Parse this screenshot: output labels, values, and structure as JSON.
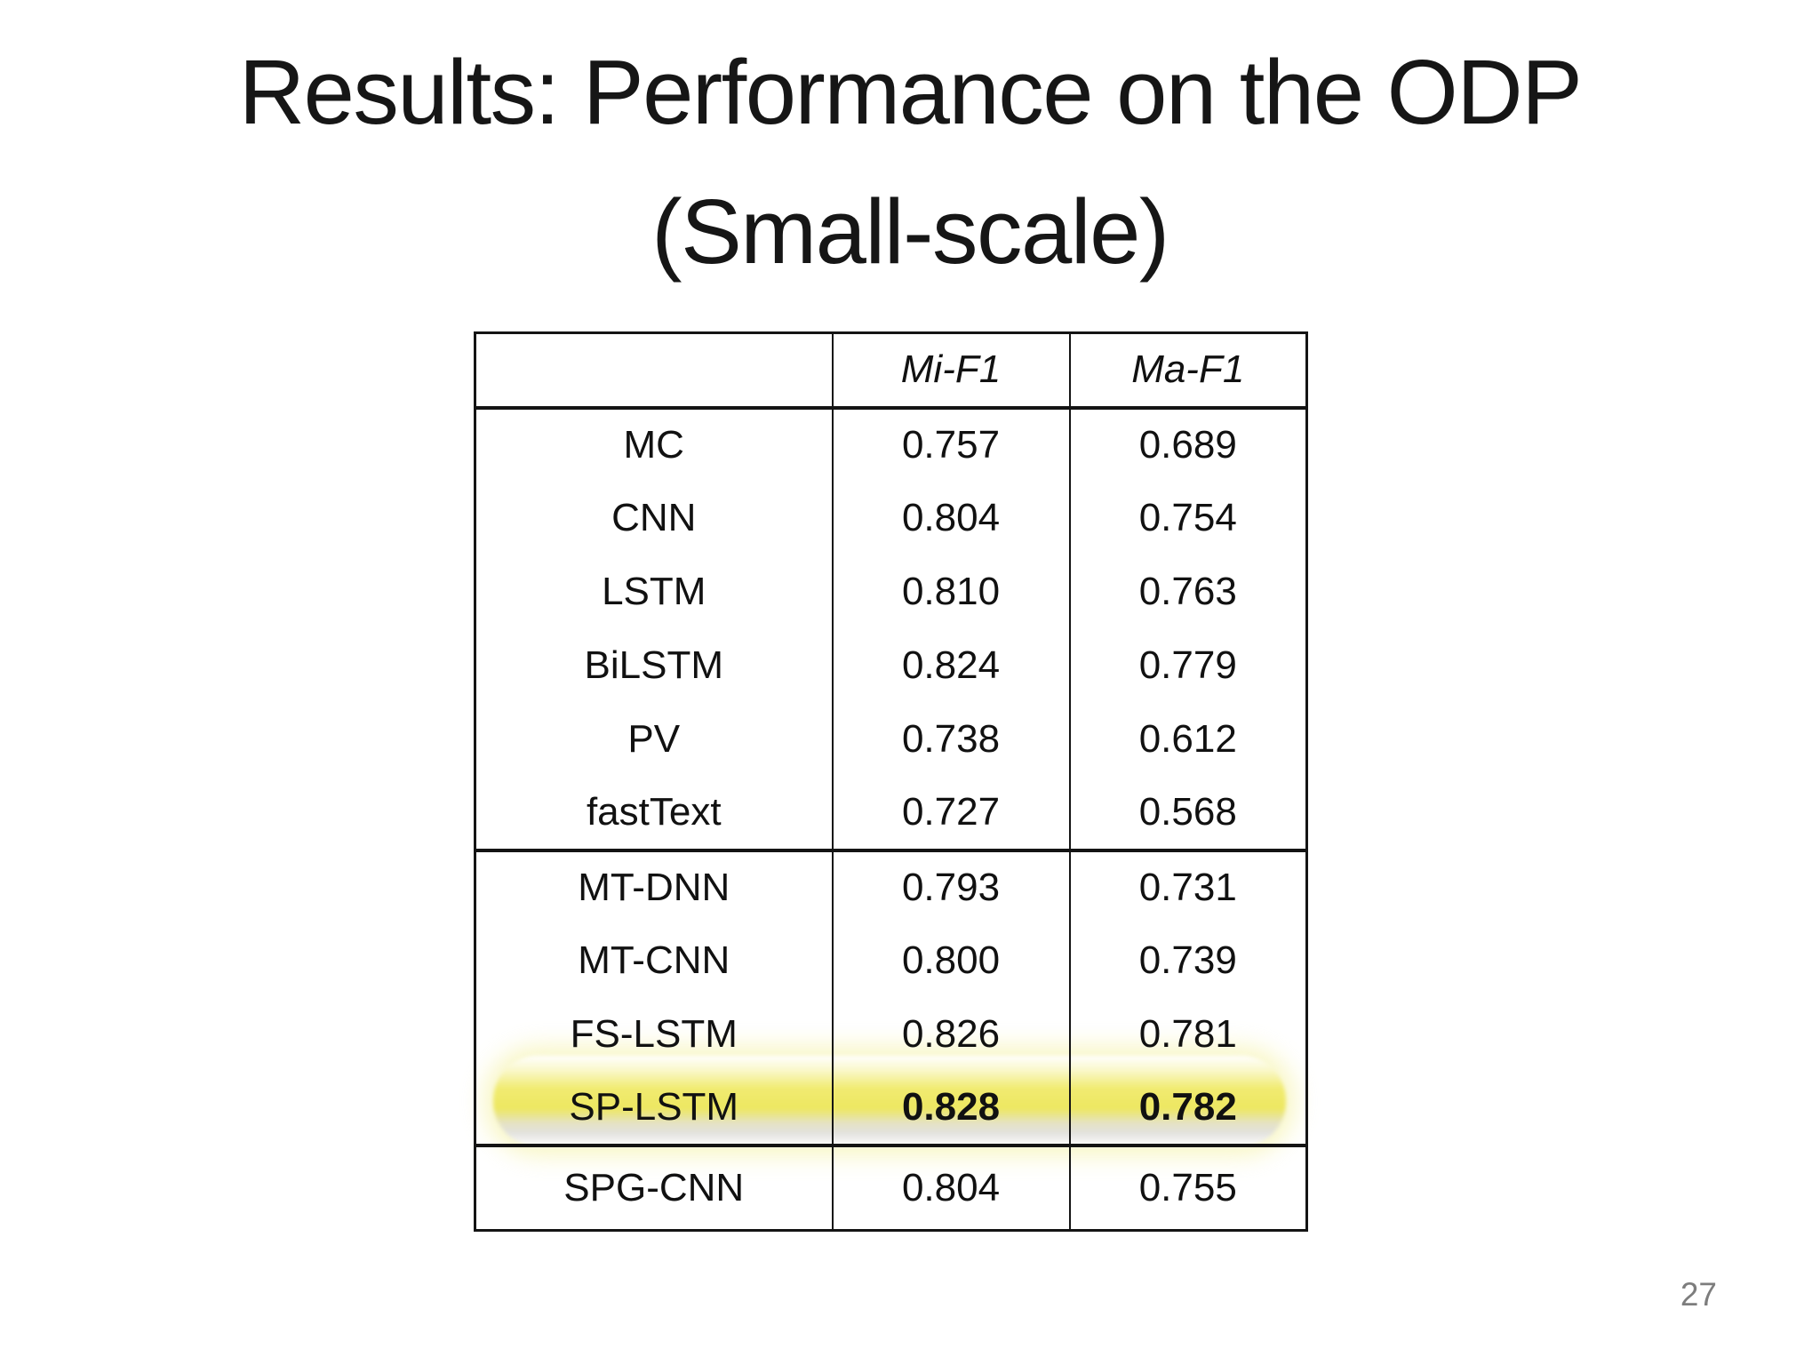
{
  "slide": {
    "title_line1": "Results: Performance on the ODP",
    "title_line2": "(Small-scale)",
    "page_number": "27"
  },
  "table": {
    "headers": [
      "",
      "Mi-F1",
      "Ma-F1"
    ],
    "sections": [
      {
        "rows": [
          [
            "MC",
            "0.757",
            "0.689"
          ],
          [
            "CNN",
            "0.804",
            "0.754"
          ],
          [
            "LSTM",
            "0.810",
            "0.763"
          ],
          [
            "BiLSTM",
            "0.824",
            "0.779"
          ],
          [
            "PV",
            "0.738",
            "0.612"
          ],
          [
            "fastText",
            "0.727",
            "0.568"
          ]
        ]
      },
      {
        "rows": [
          [
            "MT-DNN",
            "0.793",
            "0.731"
          ],
          [
            "MT-CNN",
            "0.800",
            "0.739"
          ],
          [
            "FS-LSTM",
            "0.826",
            "0.781"
          ],
          [
            "SP-LSTM",
            "0.828",
            "0.782"
          ]
        ]
      },
      {
        "rows": [
          [
            "SPG-CNN",
            "0.804",
            "0.755"
          ]
        ]
      }
    ],
    "highlighted_row": "SP-LSTM",
    "highlight_color": "#ece75f",
    "border_color": "#141414"
  }
}
